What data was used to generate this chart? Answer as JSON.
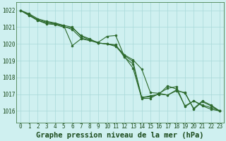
{
  "background_color": "#cff0f0",
  "grid_color": "#a8d8d8",
  "line_color": "#2d6a2d",
  "title": "Graphe pression niveau de la mer (hPa)",
  "xlim": [
    -0.5,
    23.5
  ],
  "ylim": [
    1015.3,
    1022.5
  ],
  "yticks": [
    1016,
    1017,
    1018,
    1019,
    1020,
    1021,
    1022
  ],
  "xticks": [
    0,
    1,
    2,
    3,
    4,
    5,
    6,
    7,
    8,
    9,
    10,
    11,
    12,
    13,
    14,
    15,
    16,
    17,
    18,
    19,
    20,
    21,
    22,
    23
  ],
  "series": [
    [
      1022.0,
      1021.75,
      1021.45,
      1021.3,
      1021.2,
      1021.1,
      1019.9,
      1020.3,
      1020.2,
      1020.1,
      1020.45,
      1020.5,
      1019.25,
      1018.55,
      1016.75,
      1016.75,
      1017.05,
      1017.35,
      1017.45,
      1016.25,
      1016.6,
      1016.35,
      1016.2,
      1016.0
    ],
    [
      1022.0,
      1021.8,
      1021.5,
      1021.35,
      1021.25,
      1021.1,
      1021.0,
      1020.45,
      1020.25,
      1020.05,
      1020.0,
      1019.9,
      1019.35,
      1019.05,
      1018.5,
      1017.1,
      1017.05,
      1016.95,
      1017.25,
      1017.05,
      1016.15,
      1016.6,
      1016.35,
      1016.0
    ],
    [
      1022.0,
      1021.7,
      1021.4,
      1021.2,
      1021.15,
      1021.0,
      1020.95,
      1020.5,
      1020.3,
      1020.05,
      1020.0,
      1019.85,
      1019.3,
      1018.95,
      1016.8,
      1016.85,
      1017.0,
      1016.95,
      1017.2,
      1017.1,
      1016.1,
      1016.55,
      1016.3,
      1016.0
    ],
    [
      1022.0,
      1021.7,
      1021.4,
      1021.25,
      1021.2,
      1021.05,
      1020.85,
      1020.35,
      1020.2,
      1020.05,
      1020.0,
      1019.95,
      1019.2,
      1018.8,
      1016.8,
      1016.9,
      1017.0,
      1017.5,
      1017.3,
      1016.3,
      1016.6,
      1016.3,
      1016.1,
      1016.0
    ]
  ],
  "marker": "o",
  "markersize": 2.0,
  "linewidth": 0.8,
  "title_fontsize": 7.5,
  "tick_fontsize": 5.5,
  "title_color": "#1a4a1a",
  "tick_color": "#1a4a1a",
  "spine_color": "#2d6a2d"
}
